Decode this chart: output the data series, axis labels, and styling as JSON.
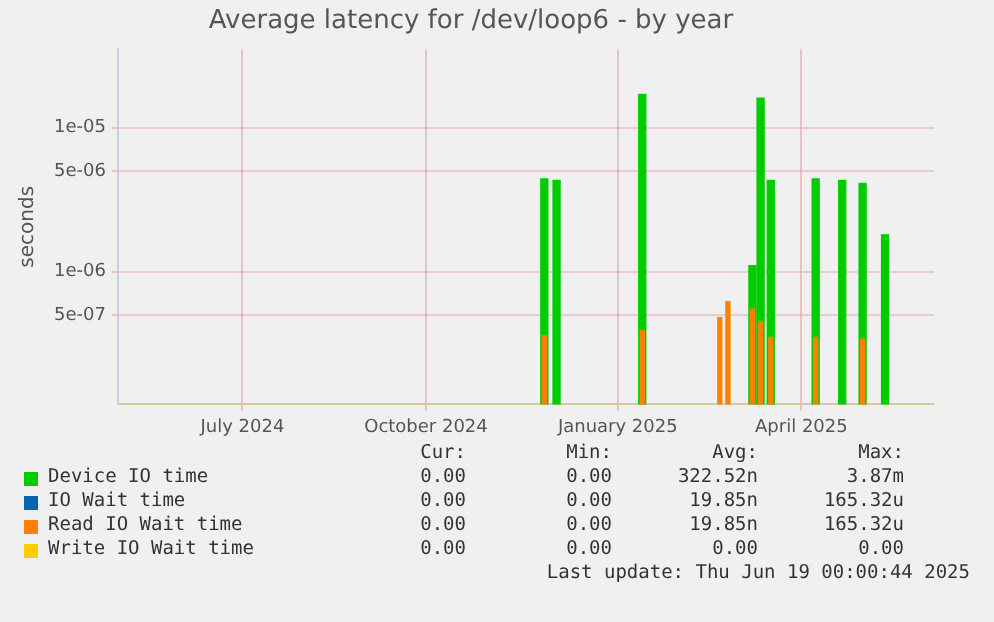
{
  "chart_data": {
    "type": "bar",
    "title": "Average latency for /dev/loop6 - by year",
    "ylabel": "seconds",
    "log": "y",
    "grid": true,
    "legend": "bottom",
    "xlim": [
      "2024-05-15",
      "2025-06-19"
    ],
    "xticks": [
      {
        "value": "2024-07-15",
        "label": "July 2024"
      },
      {
        "value": "2024-10-13",
        "label": "October 2024"
      },
      {
        "value": "2025-01-15",
        "label": "January 2025"
      },
      {
        "value": "2025-04-15",
        "label": "April 2025"
      }
    ],
    "ylim": [
      1.2e-07,
      3.5e-05
    ],
    "yticks": [
      {
        "value": 5e-07,
        "label": "5e-07"
      },
      {
        "value": 1e-06,
        "label": "1e-06"
      },
      {
        "value": 5e-06,
        "label": "5e-06"
      },
      {
        "value": 1e-05,
        "label": "1e-05"
      }
    ],
    "series": [
      {
        "name": "Device IO time",
        "color": "#00cc00",
        "x": [
          "2024-12-10",
          "2024-12-16",
          "2025-01-27",
          "2025-03-22",
          "2025-03-26",
          "2025-03-31",
          "2025-04-22",
          "2025-05-05",
          "2025-05-15",
          "2025-05-26"
        ],
        "values": [
          4.4e-06,
          4.3e-06,
          1.7e-05,
          1.1e-06,
          1.6e-05,
          4.3e-06,
          4.4e-06,
          4.3e-06,
          4.1e-06,
          1.8e-06
        ]
      },
      {
        "name": "IO Wait time",
        "color": "#0066b3"
      },
      {
        "name": "Read IO Wait time",
        "color": "#ff8000",
        "x": [
          "2024-12-10",
          "2025-01-27",
          "2025-03-06",
          "2025-03-10",
          "2025-03-22",
          "2025-03-26",
          "2025-03-31",
          "2025-04-22",
          "2025-05-15"
        ],
        "values": [
          3.6e-07,
          3.9e-07,
          4.8e-07,
          6.2e-07,
          5.5e-07,
          4.5e-07,
          3.5e-07,
          3.5e-07,
          3.4e-07
        ]
      },
      {
        "name": "Write IO Wait time",
        "color": "#ffcc00"
      }
    ],
    "annotations": [
      "Cur:",
      "Min:",
      "Avg:",
      "Max:",
      "0.00",
      "0.00",
      "322.52n",
      "3.87m",
      "0.00",
      "0.00",
      "19.85n",
      "165.32u",
      "0.00",
      "0.00",
      "19.85n",
      "165.32u",
      "0.00",
      "0.00",
      "0.00",
      "0.00",
      "Last update: Thu Jun 19 00:00:44 2025"
    ]
  }
}
